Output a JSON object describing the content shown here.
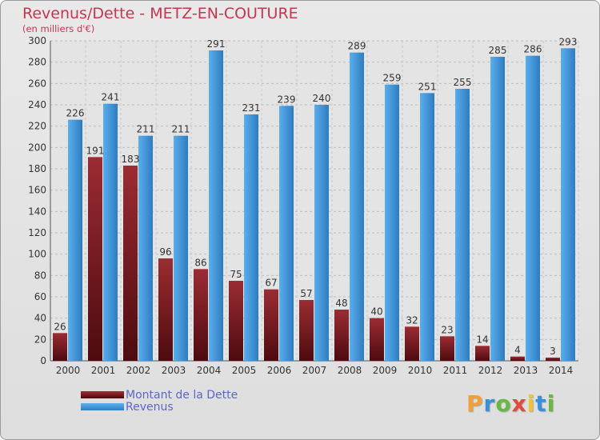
{
  "header": {
    "title": "Revenus/Dette - METZ-EN-COUTURE",
    "subtitle": "(en milliers d'€)"
  },
  "legend": {
    "debt_label": "Montant de la Dette",
    "revenue_label": "Revenus"
  },
  "logo": {
    "letters": [
      "P",
      "r",
      "o",
      "x",
      "i",
      "t",
      "i"
    ],
    "colors": [
      "#f2a03a",
      "#3b8fd8",
      "#69b843",
      "#e04b3c",
      "#f2c13a",
      "#3b8fd8",
      "#69b843"
    ]
  },
  "colors": {
    "debt": "#7a1a1f",
    "revenue": "#3d92da",
    "title": "#c5364f",
    "legend_text": "#5b67c9"
  },
  "chart_data": {
    "type": "bar",
    "title": "Revenus/Dette - METZ-EN-COUTURE",
    "ylabel": "(en milliers d'€)",
    "xlabel": "",
    "ylim": [
      0,
      300
    ],
    "ytick_step": 20,
    "grid": true,
    "legend_position": "bottom-left",
    "categories": [
      "2000",
      "2001",
      "2002",
      "2003",
      "2004",
      "2005",
      "2006",
      "2007",
      "2008",
      "2009",
      "2010",
      "2011",
      "2012",
      "2013",
      "2014"
    ],
    "series": [
      {
        "name": "Montant de la Dette",
        "values": [
          26,
          191,
          183,
          96,
          86,
          75,
          67,
          57,
          48,
          40,
          32,
          23,
          14,
          4,
          3
        ]
      },
      {
        "name": "Revenus",
        "values": [
          226,
          241,
          211,
          211,
          291,
          231,
          239,
          240,
          289,
          259,
          251,
          255,
          285,
          286,
          293
        ]
      }
    ]
  }
}
